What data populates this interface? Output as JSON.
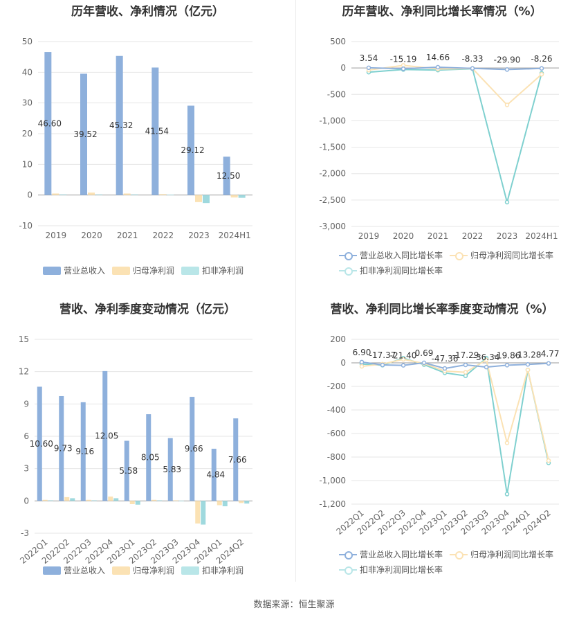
{
  "source": "数据来源：恒生聚源",
  "colors": {
    "rev": "#8eb0dc",
    "np": "#fbe2b4",
    "dnp": "#9fd9de",
    "revLine": "#8eb0dc",
    "npLine": "#fbe2b4",
    "dnpLine": "#7fd0cf"
  },
  "chart_data": [
    {
      "type": "bar",
      "title": "历年营收、净利情况（亿元）",
      "categories": [
        "2019",
        "2020",
        "2021",
        "2022",
        "2023",
        "2024H1"
      ],
      "ylim": [
        -10,
        50
      ],
      "yticks": [
        "50",
        "40",
        "30",
        "20",
        "10",
        "0",
        "-10"
      ],
      "series": [
        {
          "name": "营业总收入",
          "values": [
            46.6,
            39.52,
            45.32,
            41.54,
            29.12,
            12.5
          ],
          "labels": [
            "46.60",
            "39.52",
            "45.32",
            "41.54",
            "29.12",
            "12.50"
          ]
        },
        {
          "name": "归母净利润",
          "values": [
            0.5,
            0.8,
            0.5,
            0.3,
            -2.3,
            -0.8
          ]
        },
        {
          "name": "扣非净利润",
          "values": [
            0.2,
            0.2,
            0.2,
            0.1,
            -2.6,
            -0.9
          ]
        }
      ]
    },
    {
      "type": "line",
      "title": "历年营收、净利同比增长率情况（%）",
      "categories": [
        "2019",
        "2020",
        "2021",
        "2022",
        "2023",
        "2024H1"
      ],
      "ylim": [
        -3000,
        500
      ],
      "yticks": [
        "500",
        "0",
        "-500",
        "-1,000",
        "-1,500",
        "-2,000",
        "-2,500",
        "-3,000"
      ],
      "series": [
        {
          "name": "营业总收入同比增长率",
          "values": [
            3.54,
            -15.19,
            14.66,
            -8.33,
            -29.9,
            -8.26
          ],
          "labels": [
            "3.54",
            "-15.19",
            "14.66",
            "-8.33",
            "-29.90",
            "-8.26"
          ]
        },
        {
          "name": "归母净利润同比增长率",
          "values": [
            -40,
            50,
            -20,
            -10,
            -700,
            -120
          ]
        },
        {
          "name": "扣非净利润同比增长率",
          "values": [
            -80,
            -30,
            -40,
            -15,
            -2540,
            -100
          ]
        }
      ]
    },
    {
      "type": "bar",
      "title": "营收、净利季度变动情况（亿元）",
      "categories": [
        "2022Q1",
        "2022Q2",
        "2022Q3",
        "2022Q4",
        "2023Q1",
        "2023Q2",
        "2023Q3",
        "2023Q4",
        "2024Q1",
        "2024Q2"
      ],
      "ylim": [
        -3,
        15
      ],
      "yticks": [
        "15",
        "12",
        "9",
        "6",
        "3",
        "0",
        "-3"
      ],
      "series": [
        {
          "name": "营业总收入",
          "values": [
            10.6,
            9.73,
            9.16,
            12.05,
            5.58,
            8.05,
            5.83,
            9.66,
            4.84,
            7.66
          ],
          "labels": [
            "10.60",
            "9.73",
            "9.16",
            "12.05",
            "5.58",
            "8.05",
            "5.83",
            "9.66",
            "4.84",
            "7.66"
          ]
        },
        {
          "name": "归母净利润",
          "values": [
            0.1,
            0.35,
            0.1,
            0.4,
            -0.3,
            0.1,
            0.05,
            -2.1,
            -0.4,
            -0.2
          ]
        },
        {
          "name": "扣非净利润",
          "values": [
            0.05,
            0.25,
            0.05,
            0.25,
            -0.35,
            0.05,
            0.02,
            -2.2,
            -0.5,
            -0.25
          ]
        }
      ]
    },
    {
      "type": "line",
      "title": "营收、净利同比增长率季度变动情况（%）",
      "categories": [
        "2022Q1",
        "2022Q2",
        "2022Q3",
        "2022Q4",
        "2023Q1",
        "2023Q2",
        "2023Q3",
        "2023Q4",
        "2024Q1",
        "2024Q2"
      ],
      "ylim": [
        -1200,
        200
      ],
      "yticks": [
        "200",
        "0",
        "-200",
        "-400",
        "-600",
        "-800",
        "-1,000",
        "-1,200"
      ],
      "series": [
        {
          "name": "营业总收入同比增长率",
          "values": [
            6.9,
            -17.37,
            -21.4,
            0.69,
            -47.36,
            -17.29,
            -36.34,
            -19.86,
            -13.28,
            -4.77
          ],
          "labels": [
            "6.90",
            "-17.37",
            "-21.40",
            "0.69",
            "-47.36",
            "-17.29",
            "-36.34",
            "-19.86",
            "-13.28",
            "-4.77"
          ]
        },
        {
          "name": "归母净利润同比增长率",
          "values": [
            -30,
            -10,
            30,
            -5,
            -70,
            -80,
            25,
            -680,
            -60,
            -830
          ]
        },
        {
          "name": "扣非净利润同比增长率",
          "values": [
            -10,
            -20,
            40,
            -15,
            -85,
            -110,
            40,
            -1115,
            -60,
            -850
          ]
        }
      ]
    }
  ]
}
